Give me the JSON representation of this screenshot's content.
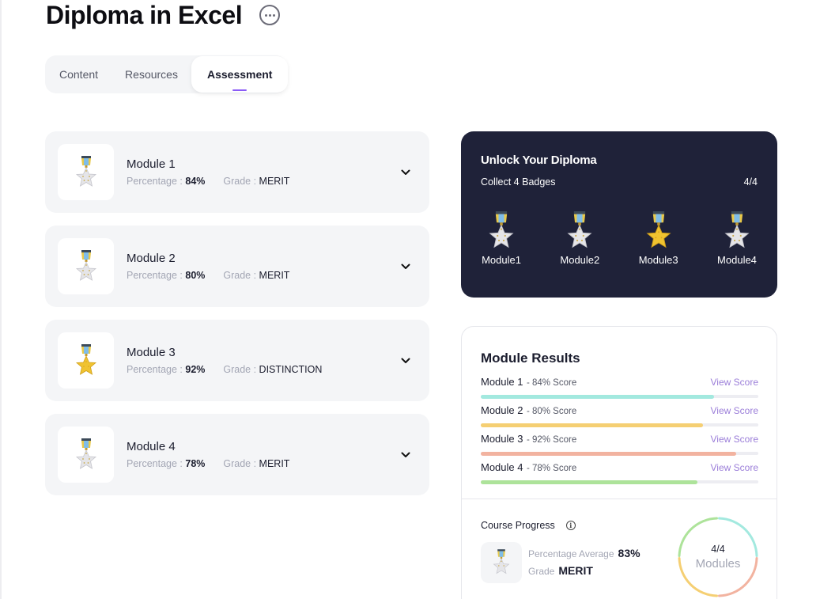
{
  "page": {
    "title": "Diploma in Excel",
    "more_icon": "ellipsis-circle-icon"
  },
  "tabs": [
    {
      "label": "Content",
      "active": false
    },
    {
      "label": "Resources",
      "active": false
    },
    {
      "label": "Assessment",
      "active": true
    }
  ],
  "labels": {
    "percentage": "Percentage :",
    "grade": "Grade :"
  },
  "modules": [
    {
      "name": "Module 1",
      "percentage": "84%",
      "grade": "MERIT",
      "badge": "silver-star-medal-icon"
    },
    {
      "name": "Module 2",
      "percentage": "80%",
      "grade": "MERIT",
      "badge": "silver-star-medal-icon"
    },
    {
      "name": "Module 3",
      "percentage": "92%",
      "grade": "DISTINCTION",
      "badge": "gold-star-medal-icon"
    },
    {
      "name": "Module 4",
      "percentage": "78%",
      "grade": "MERIT",
      "badge": "silver-star-medal-icon"
    }
  ],
  "diploma": {
    "title": "Unlock Your Diploma",
    "subtitle": "Collect 4 Badges",
    "count": "4/4",
    "badges": [
      {
        "label": "Module1",
        "type": "silver"
      },
      {
        "label": "Module2",
        "type": "silver"
      },
      {
        "label": "Module3",
        "type": "gold"
      },
      {
        "label": "Module4",
        "type": "silver"
      }
    ]
  },
  "results": {
    "title": "Module Results",
    "view_label": "View Score",
    "rows": [
      {
        "name": "Module 1",
        "score": "- 84% Score",
        "value": 84,
        "color": "#a3e9df"
      },
      {
        "name": "Module 2",
        "score": "- 80% Score",
        "value": 80,
        "color": "#f5cf73"
      },
      {
        "name": "Module 3",
        "score": "- 92% Score",
        "value": 92,
        "color": "#f2b3a0"
      },
      {
        "name": "Module 4",
        "score": "- 78% Score",
        "value": 78,
        "color": "#ade39a"
      }
    ]
  },
  "progress": {
    "title": "Course Progress",
    "info_icon": "info-circle-icon",
    "average_label": "Percentage Average",
    "average_value": "83%",
    "grade_label": "Grade",
    "grade_value": "MERIT",
    "ring_count": "4/4",
    "ring_label": "Modules",
    "ring_colors": [
      "#a3e9df",
      "#f2b3a0",
      "#f5cf73",
      "#ade39a"
    ]
  }
}
